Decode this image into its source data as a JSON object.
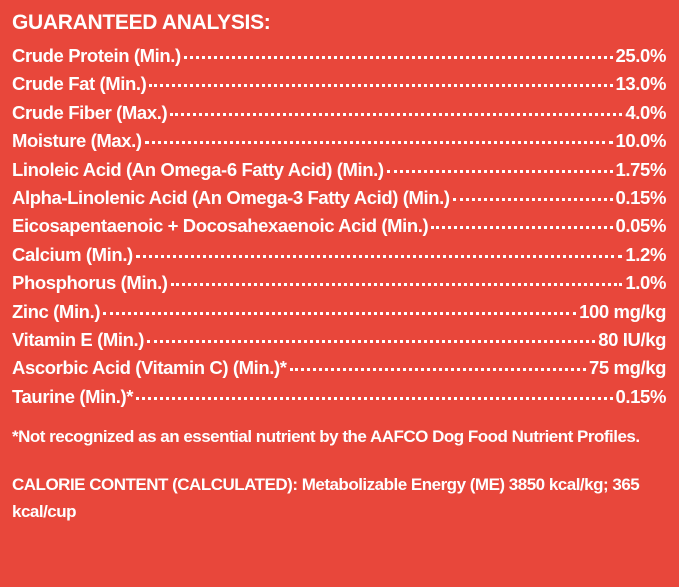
{
  "title": "GUARANTEED ANALYSIS:",
  "rows": [
    {
      "label": "Crude Protein (Min.)",
      "value": "25.0%"
    },
    {
      "label": "Crude Fat (Min.)",
      "value": "13.0%"
    },
    {
      "label": "Crude Fiber (Max.)",
      "value": "4.0%"
    },
    {
      "label": "Moisture (Max.)",
      "value": "10.0%"
    },
    {
      "label": "Linoleic Acid (An Omega-6 Fatty Acid) (Min.)",
      "value": "1.75%"
    },
    {
      "label": "Alpha-Linolenic Acid (An Omega-3 Fatty Acid) (Min.)",
      "value": "0.15%"
    },
    {
      "label": "Eicosapentaenoic + Docosahexaenoic Acid (Min.)",
      "value": "0.05%"
    },
    {
      "label": "Calcium (Min.)",
      "value": "1.2%"
    },
    {
      "label": "Phosphorus (Min.)",
      "value": "1.0%"
    },
    {
      "label": "Zinc (Min.)",
      "value": "100 mg/kg"
    },
    {
      "label": "Vitamin E (Min.)",
      "value": "80 IU/kg"
    },
    {
      "label": "Ascorbic Acid (Vitamin C) (Min.)*",
      "value": "75 mg/kg"
    },
    {
      "label": "Taurine (Min.)*",
      "value": "0.15%"
    }
  ],
  "footnote": "*Not recognized as an essential nutrient by the AAFCO Dog Food Nutrient Profiles.",
  "calorie_content": "CALORIE CONTENT (CALCULATED): Metabolizable Energy (ME) 3850 kcal/kg; 365 kcal/cup"
}
